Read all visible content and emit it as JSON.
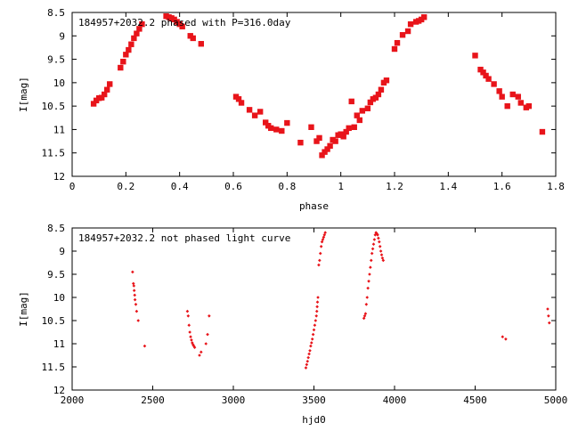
{
  "chart_data": [
    {
      "type": "scatter",
      "title": "184957+2032.2 phased with P=316.0day",
      "xlabel": "phase",
      "ylabel": "I[mag]",
      "xlim": [
        0,
        1.8
      ],
      "ylim": [
        12,
        8.5
      ],
      "y_inverted": true,
      "grid": false,
      "x_ticks": [
        "0",
        "0.2",
        "0.4",
        "0.6",
        "0.8",
        "1",
        "1.2",
        "1.4",
        "1.6",
        "1.8"
      ],
      "y_ticks": [
        "8.5",
        "9",
        "9.5",
        "10",
        "10.5",
        "11",
        "11.5",
        "12"
      ],
      "marker_color": "#e8141a",
      "series": [
        {
          "x": [
            0.08,
            0.09,
            0.1,
            0.11,
            0.12,
            0.13,
            0.14,
            0.18,
            0.19,
            0.2,
            0.21,
            0.22,
            0.23,
            0.24,
            0.25,
            0.26,
            0.35,
            0.36,
            0.37,
            0.38,
            0.39,
            0.4,
            0.41,
            0.44,
            0.45,
            0.48,
            0.61,
            0.62,
            0.63,
            0.66,
            0.68,
            0.7,
            0.72,
            0.73,
            0.74,
            0.76,
            0.78,
            0.8,
            0.85,
            0.89,
            0.91,
            0.92,
            0.93,
            0.94,
            0.95,
            0.96,
            0.97,
            0.98,
            0.99,
            1.0,
            1.01,
            1.02,
            1.03,
            1.04,
            1.05,
            1.06,
            1.07,
            1.08,
            1.1,
            1.11,
            1.12,
            1.13,
            1.14,
            1.15,
            1.16,
            1.17,
            1.2,
            1.21,
            1.23,
            1.25,
            1.26,
            1.28,
            1.29,
            1.3,
            1.31,
            1.5,
            1.52,
            1.53,
            1.54,
            1.55,
            1.57,
            1.59,
            1.6,
            1.62,
            1.64,
            1.66,
            1.67,
            1.69,
            1.7,
            1.75
          ],
          "y": [
            10.45,
            10.38,
            10.33,
            10.32,
            10.25,
            10.15,
            10.03,
            9.68,
            9.55,
            9.4,
            9.3,
            9.18,
            9.05,
            8.95,
            8.85,
            8.75,
            8.58,
            8.6,
            8.62,
            8.65,
            8.7,
            8.75,
            8.8,
            9.0,
            9.05,
            9.17,
            10.3,
            10.35,
            10.43,
            10.58,
            10.7,
            10.62,
            10.85,
            10.92,
            10.97,
            11.0,
            11.03,
            10.86,
            11.28,
            10.95,
            11.25,
            11.18,
            11.55,
            11.48,
            11.42,
            11.35,
            11.22,
            11.25,
            11.12,
            11.1,
            11.15,
            11.05,
            10.97,
            10.4,
            10.95,
            10.7,
            10.8,
            10.6,
            10.55,
            10.42,
            10.35,
            10.32,
            10.25,
            10.15,
            10.0,
            9.95,
            9.28,
            9.15,
            8.98,
            8.9,
            8.75,
            8.7,
            8.68,
            8.65,
            8.6,
            9.42,
            9.72,
            9.78,
            9.85,
            9.92,
            10.03,
            10.18,
            10.3,
            10.5,
            10.25,
            10.3,
            10.43,
            10.53,
            10.5,
            11.05
          ]
        }
      ]
    },
    {
      "type": "scatter",
      "title": "184957+2032.2 not phased light curve",
      "xlabel": "hjd0",
      "ylabel": "I[mag]",
      "xlim": [
        2000,
        5000
      ],
      "ylim": [
        12,
        8.5
      ],
      "y_inverted": true,
      "grid": false,
      "x_ticks": [
        "2000",
        "2500",
        "3000",
        "3500",
        "4000",
        "4500",
        "5000"
      ],
      "y_ticks": [
        "8.5",
        "9",
        "9.5",
        "10",
        "10.5",
        "11",
        "11.5",
        "12"
      ],
      "marker_color": "#e8141a",
      "series": [
        {
          "x": [
            2375,
            2380,
            2383,
            2385,
            2388,
            2390,
            2395,
            2400,
            2410,
            2450,
            2715,
            2720,
            2725,
            2730,
            2735,
            2740,
            2745,
            2750,
            2755,
            2760,
            2790,
            2800,
            2830,
            2840,
            2850,
            3450,
            3455,
            3460,
            3465,
            3470,
            3475,
            3480,
            3485,
            3490,
            3495,
            3500,
            3505,
            3510,
            3515,
            3518,
            3520,
            3522,
            3525,
            3530,
            3535,
            3540,
            3545,
            3550,
            3555,
            3560,
            3565,
            3570,
            3810,
            3815,
            3820,
            3825,
            3830,
            3835,
            3840,
            3845,
            3850,
            3855,
            3860,
            3865,
            3870,
            3875,
            3880,
            3885,
            3890,
            3895,
            3900,
            3905,
            3910,
            3915,
            3920,
            3925,
            3930,
            4670,
            4690,
            4950,
            4955,
            4960
          ],
          "y": [
            9.45,
            9.7,
            9.75,
            9.85,
            9.95,
            10.05,
            10.15,
            10.3,
            10.5,
            11.05,
            10.3,
            10.4,
            10.6,
            10.75,
            10.85,
            10.92,
            10.98,
            11.02,
            11.05,
            11.08,
            11.25,
            11.18,
            11.0,
            10.8,
            10.4,
            11.52,
            11.45,
            11.38,
            11.3,
            11.22,
            11.15,
            11.05,
            10.98,
            10.9,
            10.8,
            10.7,
            10.6,
            10.5,
            10.4,
            10.3,
            10.2,
            10.1,
            10.0,
            9.3,
            9.2,
            9.05,
            8.9,
            8.8,
            8.75,
            8.7,
            8.65,
            8.6,
            10.45,
            10.4,
            10.35,
            10.15,
            10.0,
            9.8,
            9.65,
            9.5,
            9.35,
            9.2,
            9.05,
            8.95,
            8.85,
            8.75,
            8.65,
            8.6,
            8.62,
            8.65,
            8.72,
            8.8,
            8.9,
            9.0,
            9.08,
            9.15,
            9.2,
            10.85,
            10.9,
            10.25,
            10.4,
            10.55
          ]
        }
      ]
    }
  ]
}
